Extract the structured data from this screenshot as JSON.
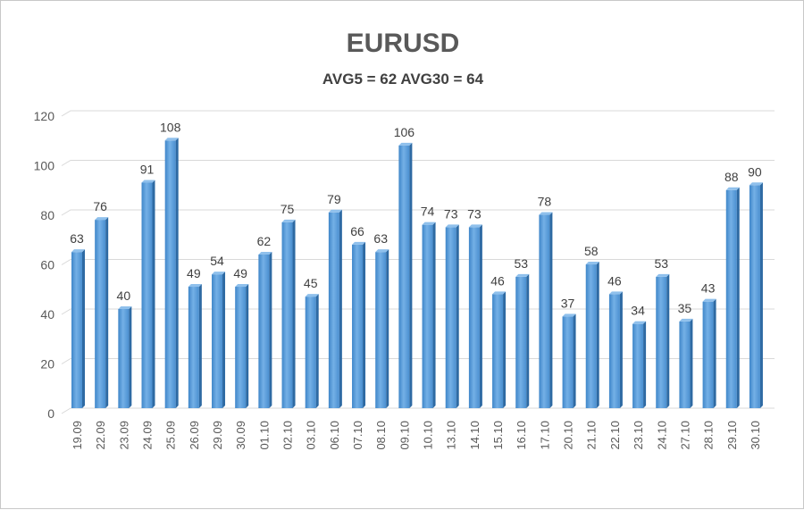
{
  "chart_data": {
    "type": "bar",
    "title": "EURUSD",
    "subtitle": "AVG5 = 62 AVG30 = 64",
    "xlabel": "",
    "ylabel": "",
    "ylim": [
      0,
      120
    ],
    "yticks": [
      0,
      20,
      40,
      60,
      80,
      100,
      120
    ],
    "grid": true,
    "categories": [
      "19.09",
      "22.09",
      "23.09",
      "24.09",
      "25.09",
      "26.09",
      "29.09",
      "30.09",
      "01.10",
      "02.10",
      "03.10",
      "06.10",
      "07.10",
      "08.10",
      "09.10",
      "10.10",
      "13.10",
      "14.10",
      "15.10",
      "16.10",
      "17.10",
      "20.10",
      "21.10",
      "22.10",
      "23.10",
      "24.10",
      "27.10",
      "28.10",
      "29.10",
      "30.10"
    ],
    "values": [
      63,
      76,
      40,
      91,
      108,
      49,
      54,
      49,
      62,
      75,
      45,
      79,
      66,
      63,
      106,
      74,
      73,
      73,
      46,
      53,
      78,
      37,
      58,
      46,
      34,
      53,
      35,
      43,
      88,
      90
    ],
    "bar_color": "#5b9bd5"
  }
}
